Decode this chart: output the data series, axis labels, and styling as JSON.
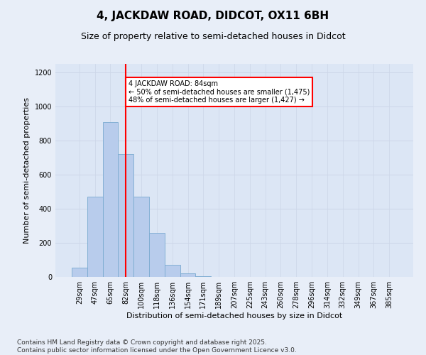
{
  "title": "4, JACKDAW ROAD, DIDCOT, OX11 6BH",
  "subtitle": "Size of property relative to semi-detached houses in Didcot",
  "xlabel": "Distribution of semi-detached houses by size in Didcot",
  "ylabel": "Number of semi-detached properties",
  "bar_labels": [
    "29sqm",
    "47sqm",
    "65sqm",
    "82sqm",
    "100sqm",
    "118sqm",
    "136sqm",
    "154sqm",
    "171sqm",
    "189sqm",
    "207sqm",
    "225sqm",
    "243sqm",
    "260sqm",
    "278sqm",
    "296sqm",
    "314sqm",
    "332sqm",
    "349sqm",
    "367sqm",
    "385sqm"
  ],
  "bar_values": [
    55,
    470,
    910,
    720,
    470,
    260,
    70,
    20,
    5,
    0,
    0,
    0,
    0,
    0,
    0,
    0,
    0,
    0,
    0,
    0,
    0
  ],
  "bar_color": "#b8ccec",
  "bar_edge_color": "#7aaad0",
  "vline_x": 3,
  "vline_color": "red",
  "annotation_text": "4 JACKDAW ROAD: 84sqm\n← 50% of semi-detached houses are smaller (1,475)\n48% of semi-detached houses are larger (1,427) →",
  "annotation_box_color": "#ffffff",
  "annotation_box_edge": "red",
  "ylim": [
    0,
    1250
  ],
  "yticks": [
    0,
    200,
    400,
    600,
    800,
    1000,
    1200
  ],
  "grid_color": "#ccd5e8",
  "plot_bg": "#dce6f5",
  "footer": "Contains HM Land Registry data © Crown copyright and database right 2025.\nContains public sector information licensed under the Open Government Licence v3.0.",
  "title_fontsize": 11,
  "subtitle_fontsize": 9,
  "axis_label_fontsize": 8,
  "tick_fontsize": 7,
  "footer_fontsize": 6.5,
  "fig_bg": "#e8eef8"
}
